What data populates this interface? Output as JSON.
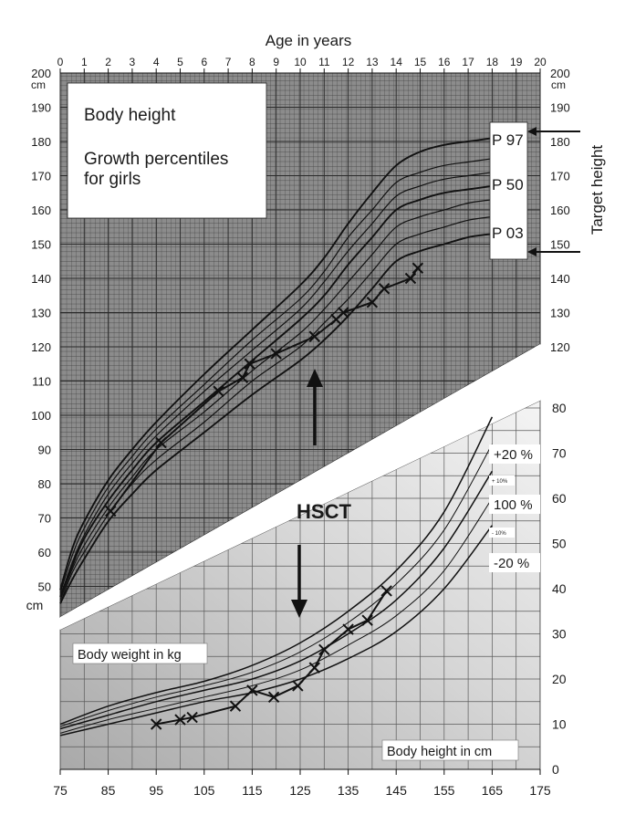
{
  "chart_data": [
    {
      "type": "line",
      "title": "Body height",
      "subtitle": "Growth percentiles for girls",
      "xlabel": "Age in years",
      "ylabel": "cm",
      "ylabel_right": "Target height",
      "xlim": [
        0,
        20
      ],
      "ylim": [
        40,
        200
      ],
      "x_ticks": [
        0,
        1,
        2,
        3,
        4,
        5,
        6,
        7,
        8,
        9,
        10,
        11,
        12,
        13,
        14,
        15,
        16,
        17,
        18,
        19,
        20
      ],
      "y_ticks": [
        50,
        60,
        70,
        80,
        90,
        100,
        110,
        120,
        130,
        140,
        150,
        160,
        170,
        180,
        190,
        200
      ],
      "unit_top": "cm",
      "unit_bottom": "cm",
      "grid": true,
      "percentile_labels": [
        "P 97",
        "P 50",
        "P 03"
      ],
      "target_height_markers": [
        182,
        148
      ],
      "percentile_curves": [
        {
          "points": [
            [
              0,
              49
            ],
            [
              0.5,
              61
            ],
            [
              1,
              69
            ],
            [
              2,
              81
            ],
            [
              3,
              90
            ],
            [
              4,
              98
            ],
            [
              6,
              112
            ],
            [
              8,
              125
            ],
            [
              10,
              138
            ],
            [
              11,
              146
            ],
            [
              12,
              156
            ],
            [
              13,
              165
            ],
            [
              14,
              173
            ],
            [
              15,
              177
            ],
            [
              16,
              179
            ],
            [
              17,
              180
            ],
            [
              18,
              181
            ]
          ]
        },
        {
          "points": [
            [
              0,
              48
            ],
            [
              0.5,
              59
            ],
            [
              1,
              67
            ],
            [
              2,
              79
            ],
            [
              3,
              88
            ],
            [
              4,
              96
            ],
            [
              6,
              109
            ],
            [
              8,
              122
            ],
            [
              10,
              134
            ],
            [
              11,
              142
            ],
            [
              12,
              152
            ],
            [
              13,
              160
            ],
            [
              14,
              168
            ],
            [
              15,
              171
            ],
            [
              16,
              173
            ],
            [
              17,
              174
            ],
            [
              18,
              175
            ]
          ]
        },
        {
          "points": [
            [
              0,
              47
            ],
            [
              0.5,
              57
            ],
            [
              1,
              65
            ],
            [
              2,
              77
            ],
            [
              3,
              86
            ],
            [
              4,
              94
            ],
            [
              6,
              107
            ],
            [
              8,
              119
            ],
            [
              10,
              131
            ],
            [
              11,
              139
            ],
            [
              12,
              148
            ],
            [
              13,
              156
            ],
            [
              14,
              164
            ],
            [
              15,
              167
            ],
            [
              16,
              169
            ],
            [
              17,
              170
            ],
            [
              18,
              171
            ]
          ]
        },
        {
          "points": [
            [
              0,
              47
            ],
            [
              0.5,
              56
            ],
            [
              1,
              64
            ],
            [
              2,
              75
            ],
            [
              3,
              84
            ],
            [
              4,
              92
            ],
            [
              6,
              104
            ],
            [
              8,
              116
            ],
            [
              10,
              128
            ],
            [
              11,
              135
            ],
            [
              12,
              144
            ],
            [
              13,
              152
            ],
            [
              14,
              160
            ],
            [
              15,
              163
            ],
            [
              16,
              165
            ],
            [
              17,
              166
            ],
            [
              18,
              167
            ]
          ]
        },
        {
          "points": [
            [
              0,
              46
            ],
            [
              0.5,
              55
            ],
            [
              1,
              62
            ],
            [
              2,
              73
            ],
            [
              3,
              82
            ],
            [
              4,
              90
            ],
            [
              6,
              101
            ],
            [
              8,
              113
            ],
            [
              10,
              124
            ],
            [
              11,
              131
            ],
            [
              12,
              139
            ],
            [
              13,
              147
            ],
            [
              14,
              155
            ],
            [
              15,
              158
            ],
            [
              16,
              160
            ],
            [
              17,
              162
            ],
            [
              18,
              163
            ]
          ]
        },
        {
          "points": [
            [
              0,
              45
            ],
            [
              0.5,
              54
            ],
            [
              1,
              60
            ],
            [
              2,
              71
            ],
            [
              3,
              80
            ],
            [
              4,
              87
            ],
            [
              6,
              98
            ],
            [
              8,
              110
            ],
            [
              10,
              120
            ],
            [
              11,
              127
            ],
            [
              12,
              134
            ],
            [
              13,
              142
            ],
            [
              14,
              150
            ],
            [
              15,
              153
            ],
            [
              16,
              155
            ],
            [
              17,
              157
            ],
            [
              18,
              158
            ]
          ]
        },
        {
          "points": [
            [
              0,
              45
            ],
            [
              0.5,
              52
            ],
            [
              1,
              58
            ],
            [
              2,
              69
            ],
            [
              3,
              77
            ],
            [
              4,
              84
            ],
            [
              6,
              95
            ],
            [
              8,
              106
            ],
            [
              10,
              116
            ],
            [
              11,
              122
            ],
            [
              12,
              129
            ],
            [
              13,
              137
            ],
            [
              14,
              145
            ],
            [
              15,
              148
            ],
            [
              16,
              150
            ],
            [
              17,
              152
            ],
            [
              18,
              153
            ]
          ]
        }
      ],
      "series": [
        {
          "points": [
            [
              2.1,
              72
            ],
            [
              4.2,
              92
            ],
            [
              6.6,
              107
            ],
            [
              7.6,
              111
            ],
            [
              7.9,
              115
            ],
            [
              9.0,
              118
            ],
            [
              10.6,
              123
            ],
            [
              11.5,
              128
            ],
            [
              11.8,
              130
            ],
            [
              13.0,
              133
            ],
            [
              13.5,
              137
            ],
            [
              14.6,
              140
            ],
            [
              14.9,
              143
            ]
          ]
        }
      ],
      "annotations": [
        "HSCT"
      ]
    },
    {
      "type": "line",
      "title": "Body weight in kg",
      "xlabel": "Body height in cm",
      "xlim": [
        75,
        175
      ],
      "ylim": [
        0,
        80
      ],
      "x_ticks": [
        75,
        85,
        95,
        105,
        115,
        125,
        135,
        145,
        155,
        165,
        175
      ],
      "y_ticks": [
        0,
        10,
        20,
        30,
        40,
        50,
        60,
        70,
        80
      ],
      "grid": true,
      "percentile_labels": [
        "+20 %",
        "+ 10%",
        "100 %",
        "- 10%",
        "-20 %"
      ],
      "percentile_curves": [
        {
          "points": [
            [
              75,
              10
            ],
            [
              85,
              14
            ],
            [
              95,
              17
            ],
            [
              105,
              19.5
            ],
            [
              115,
              23
            ],
            [
              125,
              28
            ],
            [
              135,
              35
            ],
            [
              145,
              44
            ],
            [
              155,
              57
            ],
            [
              165,
              78
            ]
          ]
        },
        {
          "points": [
            [
              75,
              9.5
            ],
            [
              85,
              13
            ],
            [
              95,
              16
            ],
            [
              105,
              18.5
            ],
            [
              115,
              21.5
            ],
            [
              125,
              26
            ],
            [
              135,
              32.5
            ],
            [
              145,
              41
            ],
            [
              155,
              53
            ],
            [
              165,
              72
            ]
          ]
        },
        {
          "points": [
            [
              75,
              9
            ],
            [
              85,
              12
            ],
            [
              95,
              15
            ],
            [
              105,
              17.5
            ],
            [
              115,
              20
            ],
            [
              125,
              24
            ],
            [
              135,
              30
            ],
            [
              145,
              37.5
            ],
            [
              155,
              49
            ],
            [
              165,
              66
            ]
          ]
        },
        {
          "points": [
            [
              75,
              8
            ],
            [
              85,
              11
            ],
            [
              95,
              13.5
            ],
            [
              105,
              16
            ],
            [
              115,
              18.5
            ],
            [
              125,
              22
            ],
            [
              135,
              27.5
            ],
            [
              145,
              34
            ],
            [
              155,
              44
            ],
            [
              165,
              60
            ]
          ]
        },
        {
          "points": [
            [
              75,
              7.5
            ],
            [
              85,
              10
            ],
            [
              95,
              12.5
            ],
            [
              105,
              15
            ],
            [
              115,
              17
            ],
            [
              125,
              20
            ],
            [
              135,
              24.5
            ],
            [
              145,
              30.5
            ],
            [
              155,
              40
            ],
            [
              165,
              54
            ]
          ]
        }
      ],
      "series": [
        {
          "points": [
            [
              95,
              10
            ],
            [
              100,
              11
            ],
            [
              102.5,
              11.5
            ],
            [
              111.5,
              14
            ],
            [
              115,
              17.5
            ],
            [
              119.5,
              16
            ],
            [
              124.5,
              18.5
            ],
            [
              128,
              22.5
            ],
            [
              130,
              26.5
            ],
            [
              135,
              31
            ],
            [
              139,
              33
            ],
            [
              143,
              39.5
            ]
          ]
        }
      ]
    }
  ]
}
